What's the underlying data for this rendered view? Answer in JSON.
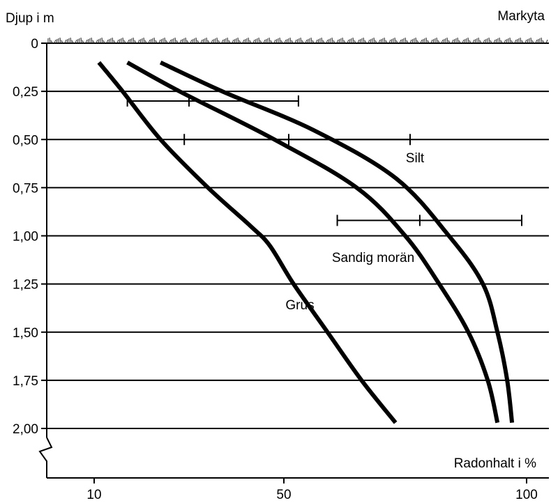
{
  "chart_data": {
    "type": "line",
    "ylabel": "Djup i m",
    "xlabel": "Radonhalt i %",
    "surface_label": "Markyta",
    "x_ticks": [
      "10",
      "50",
      "100"
    ],
    "x_tick_values": [
      10,
      50,
      100
    ],
    "y_ticks": [
      "0",
      "0,25",
      "0,50",
      "0,75",
      "1,00",
      "1,25",
      "1,50",
      "1,75",
      "2,00"
    ],
    "y_tick_values": [
      0,
      0.25,
      0.5,
      0.75,
      1.0,
      1.25,
      1.5,
      1.75,
      2.0
    ],
    "ylim": [
      0,
      2.0
    ],
    "y_inverted": true,
    "grid": "horizontal",
    "series": [
      {
        "name": "Grus",
        "points": [
          [
            11,
            0.1
          ],
          [
            16,
            0.25
          ],
          [
            24,
            0.5
          ],
          [
            34,
            0.75
          ],
          [
            43,
            0.95
          ],
          [
            47,
            1.05
          ],
          [
            52,
            1.25
          ],
          [
            59,
            1.5
          ],
          [
            66,
            1.75
          ],
          [
            73,
            1.97
          ]
        ]
      },
      {
        "name": "Sandig morän",
        "points": [
          [
            17,
            0.1
          ],
          [
            28,
            0.25
          ],
          [
            48,
            0.5
          ],
          [
            65,
            0.75
          ],
          [
            75,
            1.0
          ],
          [
            82,
            1.25
          ],
          [
            88,
            1.5
          ],
          [
            92,
            1.75
          ],
          [
            94,
            1.97
          ]
        ]
      },
      {
        "name": "Silt",
        "points": [
          [
            24,
            0.1
          ],
          [
            37,
            0.25
          ],
          [
            56,
            0.45
          ],
          [
            73,
            0.7
          ],
          [
            84,
            1.0
          ],
          [
            91,
            1.25
          ],
          [
            94,
            1.5
          ],
          [
            96,
            1.75
          ],
          [
            97,
            1.97
          ]
        ]
      }
    ],
    "error_bars": [
      {
        "y": 0.3,
        "low": 17,
        "mid": 30,
        "high": 53
      },
      {
        "y": 0.5,
        "low": 29,
        "mid": 51,
        "high": 76
      },
      {
        "y": 0.92,
        "low": 61,
        "mid": 78,
        "high": 99
      }
    ]
  }
}
